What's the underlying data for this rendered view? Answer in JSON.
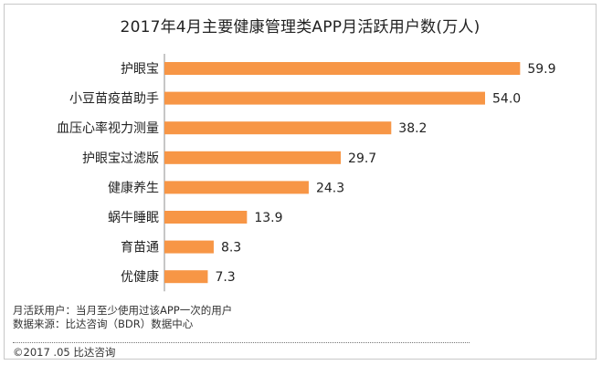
{
  "chart_data": {
    "type": "bar",
    "orientation": "horizontal",
    "title": "2017年4月主要健康管理类APP月活跃用户数(万人)",
    "categories": [
      "护眼宝",
      "小豆苗疫苗助手",
      "血压心率视力测量",
      "护眼宝过滤版",
      "健康养生",
      "蜗牛睡眠",
      "育苗通",
      "优健康"
    ],
    "values": [
      59.9,
      54.0,
      38.2,
      29.7,
      24.3,
      13.9,
      8.3,
      7.3
    ],
    "value_labels": [
      "59.9",
      "54.0",
      "38.2",
      "29.7",
      "24.3",
      "13.9",
      "8.3",
      "7.3"
    ],
    "xlim": [
      0,
      60
    ],
    "grid": false,
    "bar_color": "#f79646"
  },
  "notes": {
    "line1": "月活跃用户：当月至少使用过该APP一次的用户",
    "line2": "数据来源：比达咨询（BDR）数据中心"
  },
  "copyright": "©2017 .05  比达咨询"
}
